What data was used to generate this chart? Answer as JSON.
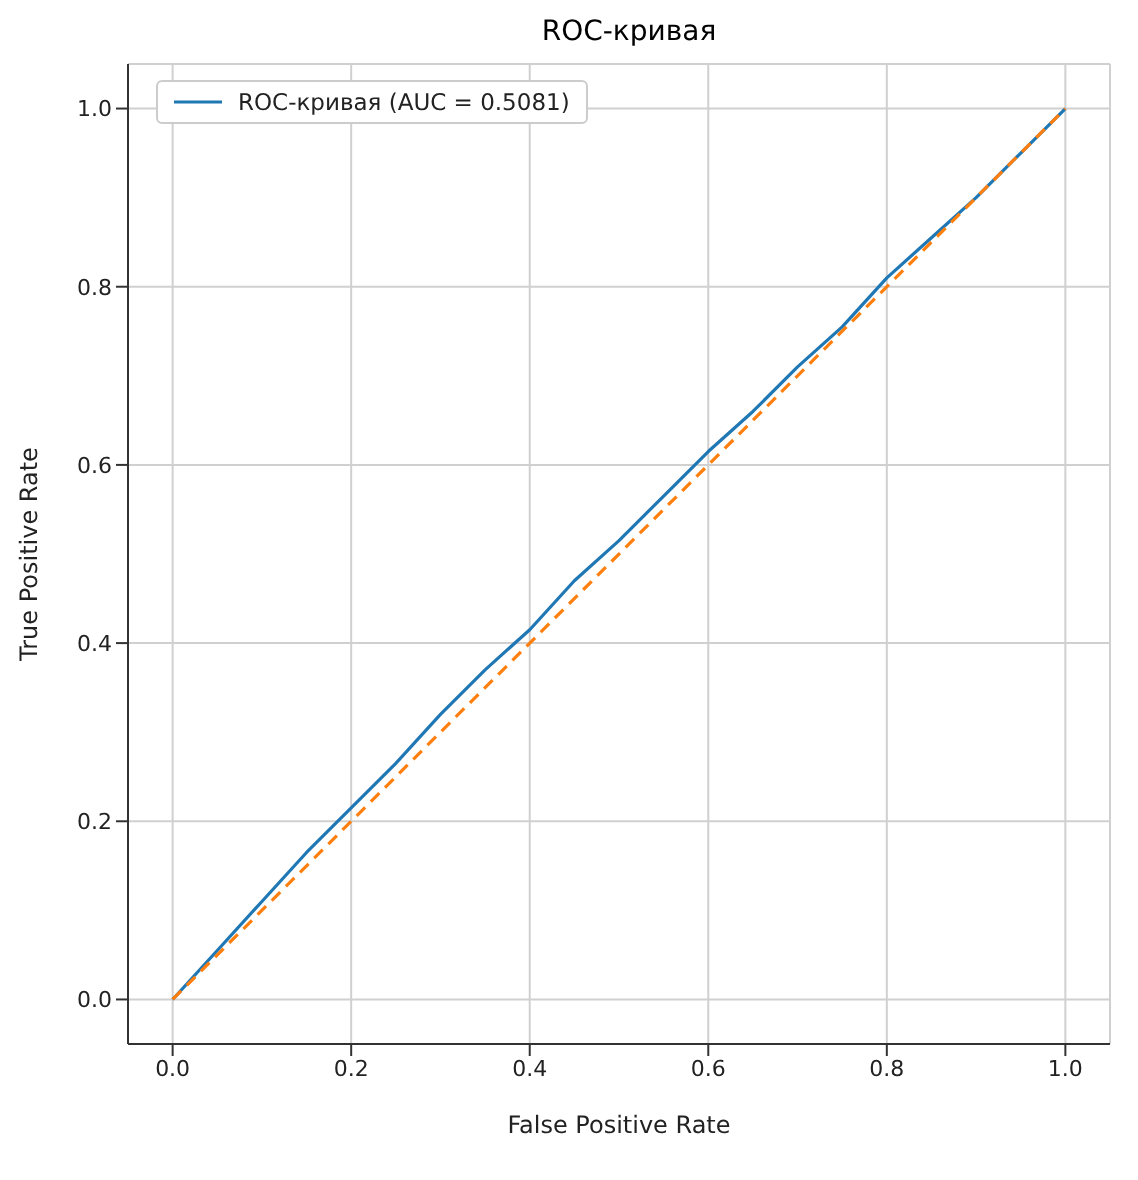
{
  "chart_data": {
    "type": "line",
    "title": "ROC-кривая",
    "xlabel": "False Positive Rate",
    "ylabel": "True Positive Rate",
    "xlim": [
      -0.05,
      1.05
    ],
    "ylim": [
      -0.05,
      1.05
    ],
    "xticks": [
      {
        "value": 0,
        "label": "0.0"
      },
      0.2,
      0.4,
      0.6,
      0.8,
      {
        "value": 1,
        "label": "1.0"
      }
    ],
    "yticks": [
      {
        "value": 0,
        "label": "0.0"
      },
      0.2,
      0.4,
      0.6,
      0.8,
      {
        "value": 1,
        "label": "1.0"
      }
    ],
    "grid": true,
    "legend": "top left",
    "marker": "none",
    "series": [
      {
        "name": "ROC-кривая (AUC = 0.5081)",
        "color": "#1f77b4",
        "line_style": "solid",
        "x": [
          0,
          0.05,
          0.1,
          0.15,
          0.2,
          0.25,
          0.3,
          0.35,
          0.4,
          0.45,
          0.5,
          0.55,
          0.6,
          0.65,
          0.7,
          0.75,
          0.8,
          0.85,
          0.9,
          0.95,
          1
        ],
        "values": [
          0,
          0.055,
          0.11,
          0.165,
          0.215,
          0.265,
          0.32,
          0.37,
          0.415,
          0.47,
          0.515,
          0.565,
          0.615,
          0.66,
          0.71,
          0.755,
          0.81,
          0.855,
          0.9,
          0.95,
          1
        ]
      },
      {
        "color": "#ff7f0e",
        "line_style": "dashed",
        "x": [
          0,
          1
        ],
        "values": [
          0,
          1
        ]
      }
    ]
  }
}
